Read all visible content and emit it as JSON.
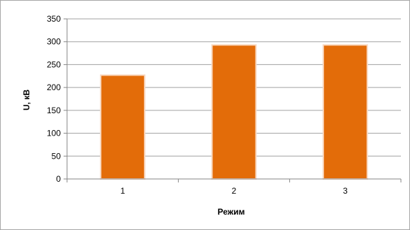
{
  "chart_data": {
    "type": "bar",
    "categories": [
      "1",
      "2",
      "3"
    ],
    "values": [
      227,
      293,
      293
    ],
    "title": "",
    "xlabel": "Режим",
    "ylabel": "U, кВ",
    "ylim": [
      0,
      350
    ],
    "yticks": [
      "0",
      "50",
      "100",
      "150",
      "200",
      "250",
      "300",
      "350"
    ],
    "grid": true,
    "legend": "none",
    "colors": {
      "bar": "#e36c09",
      "bar_edge": "#f9d8c0",
      "grid": "#a0a0a0",
      "axis": "#868686",
      "border": "#a6a6a6"
    }
  }
}
